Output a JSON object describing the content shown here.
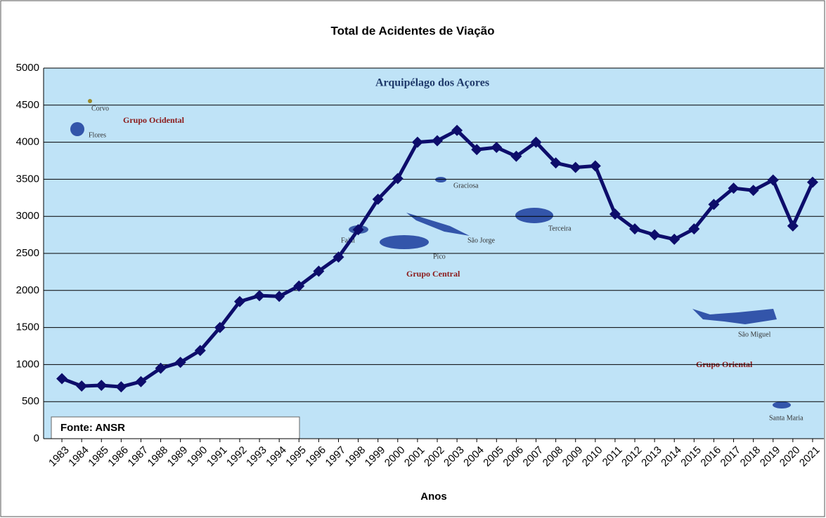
{
  "chart_data": {
    "type": "line",
    "title": "Total de Acidentes de Viação",
    "x_label": "Anos",
    "source": "Fonte: ANSR",
    "annotations": [
      "Arquipélago dos Açores",
      "Corvo",
      "Flores",
      "Grupo Ocidental",
      "Graciosa",
      "São Jorge",
      "Faial",
      "Pico",
      "Terceira",
      "Grupo Central",
      "São Miguel",
      "Grupo Oriental",
      "Santa Maria"
    ],
    "categories": [
      "1983",
      "1984",
      "1985",
      "1986",
      "1987",
      "1988",
      "1989",
      "1990",
      "1991",
      "1992",
      "1993",
      "1994",
      "1995",
      "1996",
      "1997",
      "1998",
      "1999",
      "2000",
      "2001",
      "2002",
      "2003",
      "2004",
      "2005",
      "2006",
      "2007",
      "2008",
      "2009",
      "2010",
      "2011",
      "2012",
      "2013",
      "2014",
      "2015",
      "2016",
      "2017",
      "2018",
      "2019",
      "2020",
      "2021"
    ],
    "values": [
      810,
      710,
      720,
      700,
      770,
      950,
      1030,
      1190,
      1500,
      1850,
      1930,
      1920,
      2060,
      2260,
      2450,
      2820,
      3230,
      3510,
      4000,
      4020,
      4160,
      3900,
      3930,
      3810,
      4000,
      3720,
      3660,
      3680,
      3030,
      2830,
      2750,
      2690,
      2830,
      3160,
      3380,
      3350,
      3490,
      2870,
      3460
    ],
    "color": "#0d0d6b",
    "ylim": [
      0,
      5000
    ],
    "yticks": [
      0,
      500,
      1000,
      1500,
      2000,
      2500,
      3000,
      3500,
      4000,
      4500,
      5000
    ],
    "grid": true
  }
}
